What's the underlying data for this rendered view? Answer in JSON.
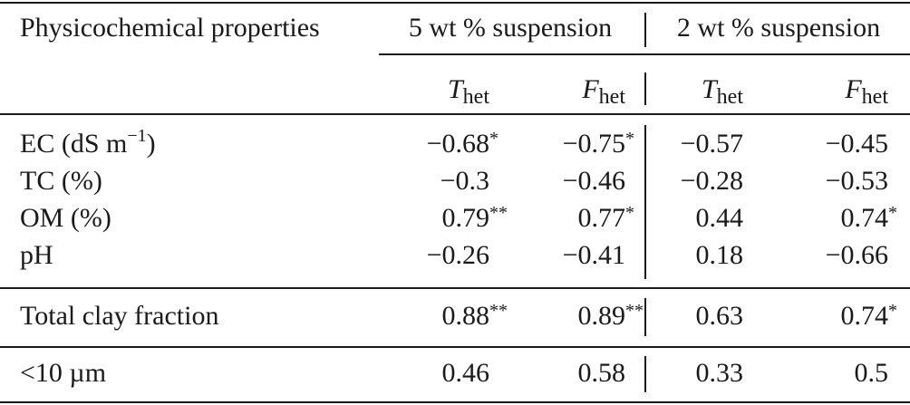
{
  "table": {
    "stub_header": "Physicochemical properties",
    "groups": [
      {
        "label": "5 wt % suspension"
      },
      {
        "label": "2 wt % suspension"
      }
    ],
    "subheaders": [
      {
        "sym": "T",
        "sub": "het"
      },
      {
        "sym": "F",
        "sub": "het"
      },
      {
        "sym": "T",
        "sub": "het"
      },
      {
        "sym": "F",
        "sub": "het"
      }
    ],
    "rows": [
      {
        "label": "EC (dS m",
        "label_sup": "−1",
        "label_tail": ")",
        "values": [
          "−0.68",
          "−0.75",
          "−0.57",
          "−0.45"
        ],
        "marks": [
          "*",
          "*",
          "",
          ""
        ]
      },
      {
        "label": "TC (%)",
        "label_sup": "",
        "label_tail": "",
        "values": [
          "−0.3",
          "−0.46",
          "−0.28",
          "−0.53"
        ],
        "marks": [
          "",
          "",
          "",
          ""
        ]
      },
      {
        "label": "OM (%)",
        "label_sup": "",
        "label_tail": "",
        "values": [
          "0.79",
          "0.77",
          "0.44",
          "0.74"
        ],
        "marks": [
          "**",
          "*",
          "",
          "*"
        ]
      },
      {
        "label": "pH",
        "label_sup": "",
        "label_tail": "",
        "values": [
          "−0.26",
          "−0.41",
          "0.18",
          "−0.66"
        ],
        "marks": [
          "",
          "",
          "",
          ""
        ]
      },
      {
        "label": "Total clay fraction",
        "label_sup": "",
        "label_tail": "",
        "values": [
          "0.88",
          "0.89",
          "0.63",
          "0.74"
        ],
        "marks": [
          "**",
          "**",
          "",
          "*"
        ]
      },
      {
        "label": "<10 µm",
        "label_sup": "",
        "label_tail": "",
        "values": [
          "0.46",
          "0.58",
          "0.33",
          "0.5"
        ],
        "marks": [
          "",
          "",
          "",
          ""
        ]
      }
    ]
  }
}
